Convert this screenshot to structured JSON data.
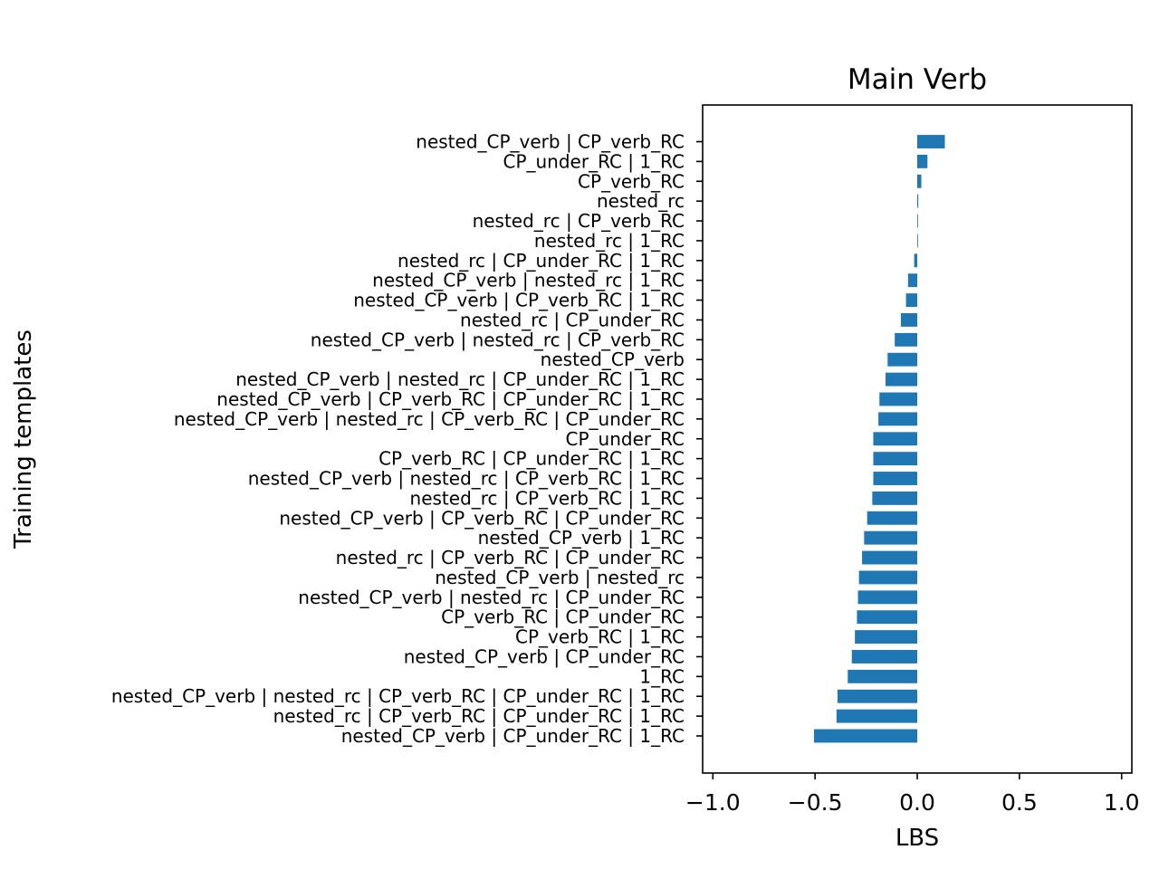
{
  "chart_data": {
    "type": "bar",
    "orientation": "horizontal",
    "title": "Main Verb",
    "xlabel": "LBS",
    "ylabel": "Training templates",
    "xlim": [
      -1.05,
      1.05
    ],
    "xticks": [
      -1.0,
      -0.5,
      0.0,
      0.5,
      1.0
    ],
    "xtick_labels": [
      "−1.0",
      "−0.5",
      "0.0",
      "0.5",
      "1.0"
    ],
    "grid": false,
    "color": "#1f77b4",
    "categories": [
      "nested_CP_verb | CP_verb_RC",
      "CP_under_RC | 1_RC",
      "CP_verb_RC",
      "nested_rc",
      "nested_rc | CP_verb_RC",
      "nested_rc | 1_RC",
      "nested_rc | CP_under_RC | 1_RC",
      "nested_CP_verb | nested_rc | 1_RC",
      "nested_CP_verb | CP_verb_RC | 1_RC",
      "nested_rc | CP_under_RC",
      "nested_CP_verb | nested_rc | CP_verb_RC",
      "nested_CP_verb",
      "nested_CP_verb | nested_rc | CP_under_RC | 1_RC",
      "nested_CP_verb | CP_verb_RC | CP_under_RC | 1_RC",
      "nested_CP_verb | nested_rc | CP_verb_RC | CP_under_RC",
      "CP_under_RC",
      "CP_verb_RC | CP_under_RC | 1_RC",
      "nested_CP_verb | nested_rc | CP_verb_RC | 1_RC",
      "nested_rc | CP_verb_RC | 1_RC",
      "nested_CP_verb | CP_verb_RC | CP_under_RC",
      "nested_CP_verb | 1_RC",
      "nested_rc | CP_verb_RC | CP_under_RC",
      "nested_CP_verb | nested_rc",
      "nested_CP_verb | nested_rc | CP_under_RC",
      "CP_verb_RC | CP_under_RC",
      "CP_verb_RC | 1_RC",
      "nested_CP_verb | CP_under_RC",
      "1_RC",
      "nested_CP_verb | nested_rc | CP_verb_RC | CP_under_RC | 1_RC",
      "nested_rc | CP_verb_RC | CP_under_RC | 1_RC",
      "nested_CP_verb | CP_under_RC | 1_RC"
    ],
    "values": [
      0.135,
      0.05,
      0.02,
      0.005,
      0.003,
      0.002,
      -0.015,
      -0.045,
      -0.055,
      -0.08,
      -0.11,
      -0.145,
      -0.155,
      -0.185,
      -0.19,
      -0.215,
      -0.215,
      -0.215,
      -0.22,
      -0.245,
      -0.26,
      -0.27,
      -0.285,
      -0.29,
      -0.295,
      -0.305,
      -0.32,
      -0.34,
      -0.39,
      -0.395,
      -0.505
    ]
  }
}
